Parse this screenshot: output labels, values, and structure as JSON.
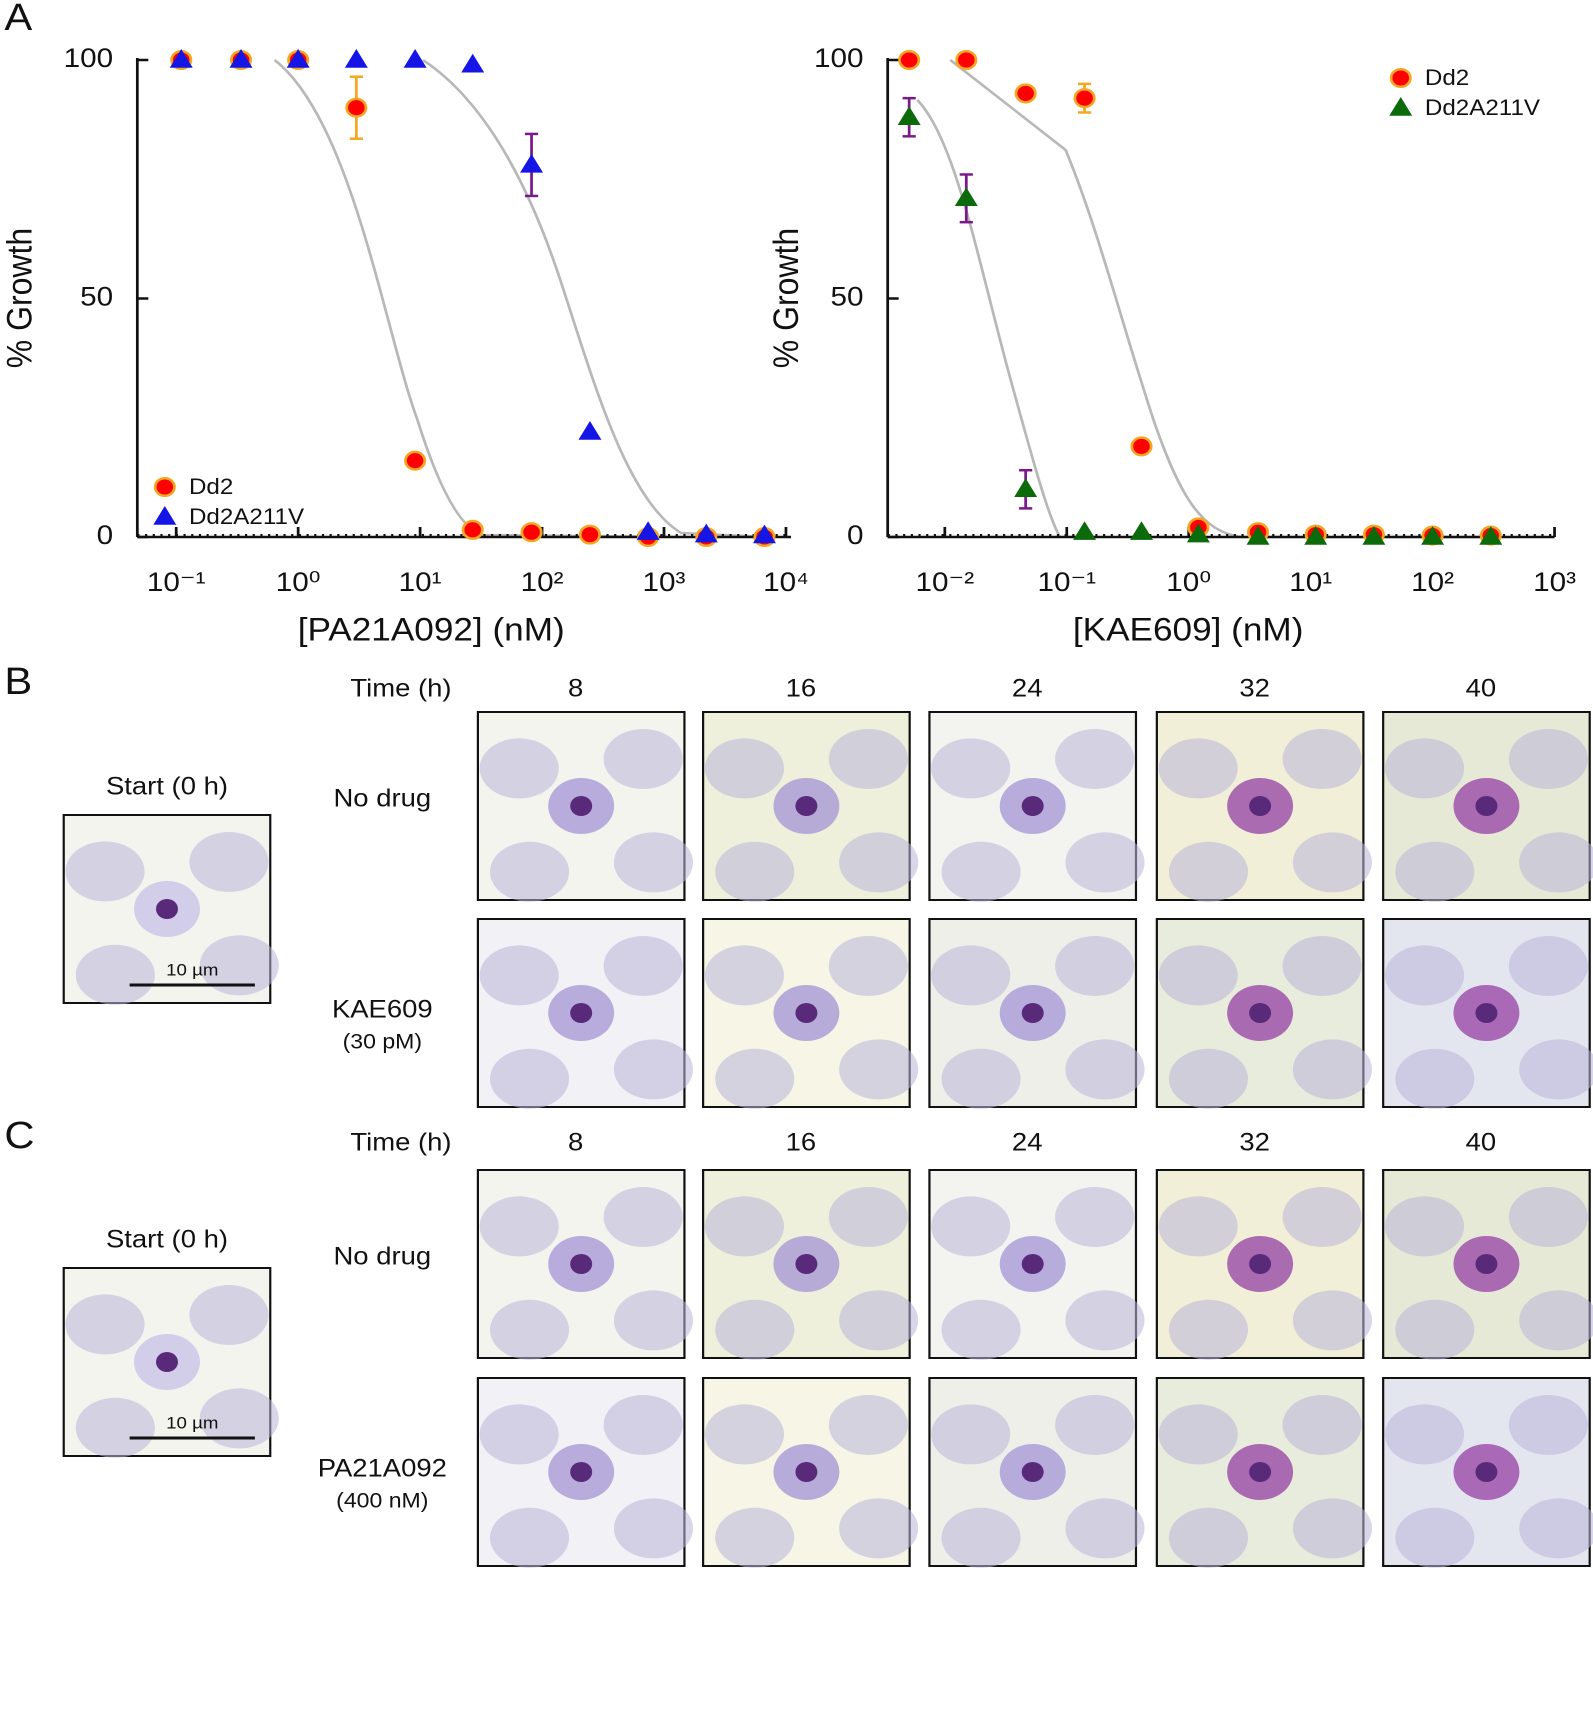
{
  "panel_labels": [
    "A",
    "B",
    "C"
  ],
  "chart_data": [
    {
      "type": "scatter",
      "xlabel": "[PA21A092] (nM)",
      "ylabel": "% Growth",
      "xscale": "log",
      "x": [
        0.11,
        0.34,
        1.0,
        3.0,
        9.1,
        27,
        82,
        247,
        741,
        2222,
        6667
      ],
      "xlim": [
        0.048,
        11000
      ],
      "xticks": [
        {
          "value": 0.1,
          "label": "10⁻¹"
        },
        {
          "value": 1,
          "label": "10⁰"
        },
        {
          "value": 10,
          "label": "10¹"
        },
        {
          "value": 100,
          "label": "10²"
        },
        {
          "value": 1000,
          "label": "10³"
        },
        {
          "value": 10000,
          "label": "10⁴"
        }
      ],
      "ylim": [
        0,
        100
      ],
      "yticks": [
        0,
        50,
        100
      ],
      "legend": "lower left",
      "series": [
        {
          "name": "Dd2",
          "color": "#ff0000",
          "edgecolor": "#f5a623",
          "errorcolor": "#f5a623",
          "marker": "circle",
          "values": [
            100,
            100,
            100,
            90,
            16,
            1.5,
            1,
            0.5,
            0,
            0,
            0
          ],
          "errors": [
            null,
            null,
            null,
            6.5,
            null,
            null,
            null,
            null,
            null,
            null,
            null
          ]
        },
        {
          "name": "Dd2A211V",
          "color": "#1515e6",
          "edgecolor": "#1515e6",
          "errorcolor": "#7a1a8a",
          "marker": "triangle",
          "values": [
            100,
            100,
            100,
            100,
            100,
            99,
            78,
            22,
            1,
            0.5,
            0.3
          ],
          "errors": [
            null,
            null,
            null,
            null,
            null,
            null,
            6.5,
            null,
            null,
            null,
            null
          ]
        }
      ]
    },
    {
      "type": "scatter",
      "xlabel": "[KAE609] (nM)",
      "ylabel": "% Growth",
      "xscale": "log",
      "x": [
        0.0051,
        0.015,
        0.046,
        0.14,
        0.41,
        1.2,
        3.7,
        11,
        33,
        100,
        300
      ],
      "xlim": [
        0.0034,
        1000
      ],
      "xticks": [
        {
          "value": 0.01,
          "label": "10⁻²"
        },
        {
          "value": 0.1,
          "label": "10⁻¹"
        },
        {
          "value": 1,
          "label": "10⁰"
        },
        {
          "value": 10,
          "label": "10¹"
        },
        {
          "value": 100,
          "label": "10²"
        },
        {
          "value": 1000,
          "label": "10³"
        }
      ],
      "ylim": [
        0,
        100
      ],
      "yticks": [
        0,
        50,
        100
      ],
      "legend": "upper right",
      "series": [
        {
          "name": "Dd2",
          "color": "#ff0000",
          "edgecolor": "#f5a623",
          "errorcolor": "#f5a623",
          "marker": "circle",
          "values": [
            100,
            100,
            93,
            92,
            19,
            2,
            1,
            0.5,
            0.5,
            0.3,
            0.3
          ],
          "errors": [
            null,
            null,
            null,
            3,
            null,
            null,
            null,
            null,
            null,
            null,
            null
          ]
        },
        {
          "name": "Dd2A211V",
          "color": "#0b6b0b",
          "edgecolor": "#0b6b0b",
          "errorcolor": "#7a1a8a",
          "marker": "triangle",
          "values": [
            88,
            71,
            10,
            1,
            1,
            0.5,
            0,
            0,
            0,
            0,
            0
          ],
          "errors": [
            4,
            5,
            4,
            null,
            null,
            null,
            null,
            null,
            null,
            null,
            null
          ]
        }
      ]
    }
  ],
  "panel_b": {
    "time_label": "Time (h)",
    "times": [
      8,
      16,
      24,
      32,
      40
    ],
    "start_label": "Start (0 h)",
    "scale_bar": "10 µm",
    "rows": [
      {
        "label": "No drug"
      },
      {
        "label": "KAE609",
        "sublabel": "(30 pM)"
      }
    ]
  },
  "panel_c": {
    "time_label": "Time (h)",
    "times": [
      8,
      16,
      24,
      32,
      40
    ],
    "start_label": "Start (0 h)",
    "scale_bar": "10 µm",
    "rows": [
      {
        "label": "No drug"
      },
      {
        "label": "PA21A092",
        "sublabel": "(400 nM)"
      }
    ]
  }
}
